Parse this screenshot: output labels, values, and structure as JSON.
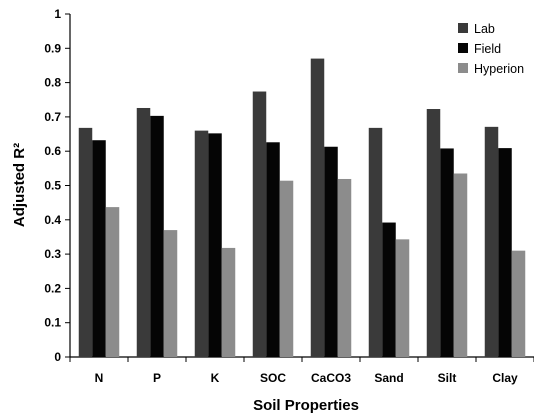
{
  "chart_data": {
    "type": "bar",
    "title": "",
    "xlabel": "Soil Properties",
    "ylabel": "Adjusted R²",
    "ylim": [
      0,
      1
    ],
    "yticks": [
      "0",
      "0.1",
      "0.2",
      "0.3",
      "0.4",
      "0.5",
      "0.6",
      "0.7",
      "0.8",
      "0.9",
      "1"
    ],
    "grid": false,
    "legend_position": "top-right",
    "categories": [
      "N",
      "P",
      "K",
      "SOC",
      "CaCO3",
      "Sand",
      "Silt",
      "Clay"
    ],
    "series": [
      {
        "name": "Lab",
        "color": "#3a3a3a",
        "values": [
          0.668,
          0.726,
          0.66,
          0.774,
          0.87,
          0.668,
          0.723,
          0.671
        ]
      },
      {
        "name": "Field",
        "color": "#050505",
        "values": [
          0.632,
          0.703,
          0.652,
          0.626,
          0.613,
          0.392,
          0.608,
          0.609
        ]
      },
      {
        "name": "Hyperion",
        "color": "#8c8c8c",
        "values": [
          0.437,
          0.37,
          0.318,
          0.514,
          0.519,
          0.343,
          0.535,
          0.31
        ]
      }
    ]
  }
}
